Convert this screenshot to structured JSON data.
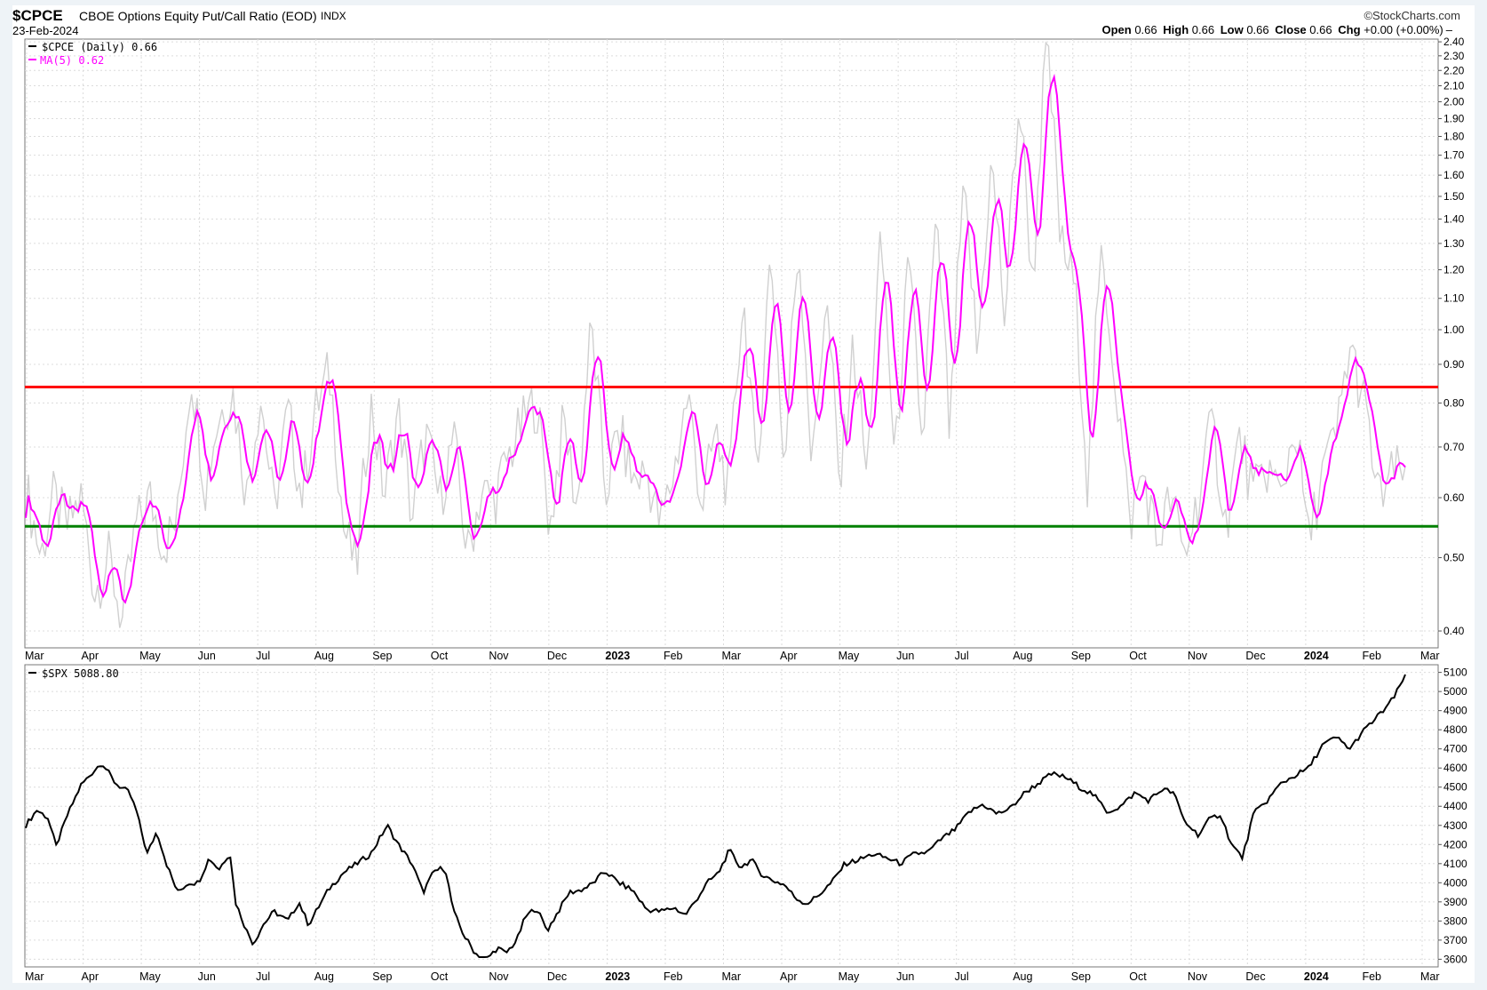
{
  "header": {
    "symbol": "$CPCE",
    "description": "CBOE Options Equity Put/Call Ratio (EOD)",
    "exchange": "INDX",
    "date": "23-Feb-2024",
    "watermark": "©StockCharts.com",
    "ohlc": {
      "open_label": "Open",
      "open": "0.66",
      "high_label": "High",
      "high": "0.66",
      "low_label": "Low",
      "low": "0.66",
      "close_label": "Close",
      "close": "0.66",
      "chg_label": "Chg",
      "chg": "+0.00 (+0.00%)"
    }
  },
  "x_axis_labels": [
    "Mar",
    "Apr",
    "May",
    "Jun",
    "Jul",
    "Aug",
    "Sep",
    "Oct",
    "Nov",
    "Dec",
    "2023",
    "Feb",
    "Mar",
    "Apr",
    "May",
    "Jun",
    "Jul",
    "Aug",
    "Sep",
    "Oct",
    "Nov",
    "Dec",
    "2024",
    "Feb",
    "Mar"
  ],
  "colors": {
    "cpce": "#d0d0d0",
    "ma": "#ff00ff",
    "resistance": "#ff0000",
    "support": "#008000",
    "spx": "#000000",
    "grid": "#dcdcdc"
  },
  "chart_data": [
    {
      "type": "line",
      "title": "$CPCE CBOE Options Equity Put/Call Ratio (EOD)",
      "scale": "log",
      "ylim": [
        0.38,
        2.42
      ],
      "y_ticks": [
        "0.40",
        "0.50",
        "0.60",
        "0.70",
        "0.80",
        "0.90",
        "1.00",
        "1.10",
        "1.20",
        "1.30",
        "1.40",
        "1.50",
        "1.60",
        "1.70",
        "1.80",
        "1.90",
        "2.00",
        "2.10",
        "2.20",
        "2.30",
        "2.40"
      ],
      "legend": [
        "$CPCE (Daily) 0.66",
        "MA(5) 0.62"
      ],
      "series": [
        {
          "name": "$CPCE (Daily)",
          "keypoints": [
            [
              0,
              0.62
            ],
            [
              0.011,
              0.5
            ],
            [
              0.02,
              0.6
            ],
            [
              0.03,
              0.55
            ],
            [
              0.04,
              0.6
            ],
            [
              0.05,
              0.45
            ],
            [
              0.06,
              0.5
            ],
            [
              0.07,
              0.41
            ],
            [
              0.08,
              0.55
            ],
            [
              0.09,
              0.6
            ],
            [
              0.1,
              0.52
            ],
            [
              0.11,
              0.56
            ],
            [
              0.12,
              0.88
            ],
            [
              0.13,
              0.62
            ],
            [
              0.14,
              0.77
            ],
            [
              0.15,
              0.83
            ],
            [
              0.16,
              0.6
            ],
            [
              0.17,
              0.82
            ],
            [
              0.18,
              0.57
            ],
            [
              0.19,
              0.78
            ],
            [
              0.2,
              0.6
            ],
            [
              0.21,
              0.78
            ],
            [
              0.22,
              0.88
            ],
            [
              0.23,
              0.55
            ],
            [
              0.24,
              0.48
            ],
            [
              0.25,
              0.8
            ],
            [
              0.26,
              0.6
            ],
            [
              0.27,
              0.78
            ],
            [
              0.28,
              0.56
            ],
            [
              0.29,
              0.73
            ],
            [
              0.3,
              0.59
            ],
            [
              0.31,
              0.72
            ],
            [
              0.32,
              0.5
            ],
            [
              0.33,
              0.61
            ],
            [
              0.34,
              0.6
            ],
            [
              0.35,
              0.68
            ],
            [
              0.36,
              0.75
            ],
            [
              0.37,
              0.81
            ],
            [
              0.38,
              0.54
            ],
            [
              0.39,
              0.76
            ],
            [
              0.4,
              0.57
            ],
            [
              0.41,
              1.01
            ],
            [
              0.42,
              0.6
            ],
            [
              0.43,
              0.74
            ],
            [
              0.44,
              0.63
            ],
            [
              0.45,
              0.65
            ],
            [
              0.46,
              0.55
            ],
            [
              0.47,
              0.65
            ],
            [
              0.48,
              0.82
            ],
            [
              0.49,
              0.58
            ],
            [
              0.5,
              0.73
            ],
            [
              0.51,
              0.6
            ],
            [
              0.52,
              1.1
            ],
            [
              0.53,
              0.6
            ],
            [
              0.54,
              1.25
            ],
            [
              0.55,
              0.62
            ],
            [
              0.56,
              1.3
            ],
            [
              0.57,
              0.63
            ],
            [
              0.58,
              1.1
            ],
            [
              0.59,
              0.6
            ],
            [
              0.6,
              0.95
            ],
            [
              0.61,
              0.62
            ],
            [
              0.62,
              1.3
            ],
            [
              0.63,
              0.64
            ],
            [
              0.64,
              1.2
            ],
            [
              0.65,
              0.68
            ],
            [
              0.66,
              1.35
            ],
            [
              0.67,
              0.7
            ],
            [
              0.68,
              1.5
            ],
            [
              0.69,
              0.9
            ],
            [
              0.7,
              1.65
            ],
            [
              0.71,
              1.0
            ],
            [
              0.72,
              2.0
            ],
            [
              0.73,
              1.1
            ],
            [
              0.74,
              2.35
            ],
            [
              0.75,
              1.3
            ],
            [
              0.76,
              1.15
            ],
            [
              0.77,
              0.6
            ],
            [
              0.78,
              1.25
            ],
            [
              0.79,
              0.85
            ],
            [
              0.8,
              0.55
            ],
            [
              0.81,
              0.65
            ],
            [
              0.82,
              0.52
            ],
            [
              0.83,
              0.6
            ],
            [
              0.84,
              0.5
            ],
            [
              0.85,
              0.6
            ],
            [
              0.86,
              0.75
            ],
            [
              0.87,
              0.55
            ],
            [
              0.88,
              0.72
            ],
            [
              0.89,
              0.6
            ],
            [
              0.9,
              0.66
            ],
            [
              0.91,
              0.6
            ],
            [
              0.92,
              0.75
            ],
            [
              0.93,
              0.52
            ],
            [
              0.94,
              0.65
            ],
            [
              0.95,
              0.72
            ],
            [
              0.96,
              0.95
            ],
            [
              0.97,
              0.8
            ],
            [
              0.98,
              0.6
            ],
            [
              0.99,
              0.64
            ],
            [
              1.0,
              0.66
            ]
          ]
        },
        {
          "name": "MA(5)",
          "description": "5-period moving average of $CPCE"
        },
        {
          "name": "Resistance",
          "value": 0.84
        },
        {
          "name": "Support",
          "value": 0.55
        }
      ]
    },
    {
      "type": "line",
      "title": "$SPX",
      "ylim": [
        3560,
        5140
      ],
      "y_ticks": [
        "3600",
        "3700",
        "3800",
        "3900",
        "4000",
        "4100",
        "4200",
        "4300",
        "4400",
        "4500",
        "4600",
        "4700",
        "4800",
        "4900",
        "5000",
        "5100"
      ],
      "legend": [
        "$SPX 5088.80"
      ],
      "series": [
        {
          "name": "$SPX",
          "keypoints": [
            [
              0,
              4300
            ],
            [
              0.008,
              4380
            ],
            [
              0.016,
              4340
            ],
            [
              0.022,
              4190
            ],
            [
              0.03,
              4350
            ],
            [
              0.04,
              4510
            ],
            [
              0.05,
              4590
            ],
            [
              0.055,
              4630
            ],
            [
              0.065,
              4520
            ],
            [
              0.075,
              4470
            ],
            [
              0.08,
              4380
            ],
            [
              0.088,
              4150
            ],
            [
              0.095,
              4270
            ],
            [
              0.102,
              4100
            ],
            [
              0.11,
              3950
            ],
            [
              0.118,
              4000
            ],
            [
              0.125,
              4000
            ],
            [
              0.133,
              4130
            ],
            [
              0.14,
              4070
            ],
            [
              0.148,
              4160
            ],
            [
              0.152,
              3900
            ],
            [
              0.16,
              3750
            ],
            [
              0.165,
              3680
            ],
            [
              0.172,
              3780
            ],
            [
              0.18,
              3850
            ],
            [
              0.19,
              3800
            ],
            [
              0.198,
              3900
            ],
            [
              0.205,
              3780
            ],
            [
              0.212,
              3870
            ],
            [
              0.22,
              3970
            ],
            [
              0.23,
              4050
            ],
            [
              0.24,
              4100
            ],
            [
              0.25,
              4150
            ],
            [
              0.262,
              4300
            ],
            [
              0.27,
              4200
            ],
            [
              0.28,
              4100
            ],
            [
              0.288,
              3950
            ],
            [
              0.296,
              4060
            ],
            [
              0.304,
              4080
            ],
            [
              0.31,
              3850
            ],
            [
              0.318,
              3720
            ],
            [
              0.326,
              3630
            ],
            [
              0.334,
              3600
            ],
            [
              0.342,
              3660
            ],
            [
              0.348,
              3630
            ],
            [
              0.356,
              3700
            ],
            [
              0.362,
              3820
            ],
            [
              0.37,
              3870
            ],
            [
              0.378,
              3750
            ],
            [
              0.386,
              3850
            ],
            [
              0.394,
              3950
            ],
            [
              0.402,
              3960
            ],
            [
              0.41,
              3990
            ],
            [
              0.42,
              4060
            ],
            [
              0.43,
              4000
            ],
            [
              0.44,
              3960
            ],
            [
              0.45,
              3860
            ],
            [
              0.46,
              3850
            ],
            [
              0.47,
              3870
            ],
            [
              0.478,
              3830
            ],
            [
              0.485,
              3900
            ],
            [
              0.494,
              4000
            ],
            [
              0.502,
              4050
            ],
            [
              0.51,
              4170
            ],
            [
              0.518,
              4080
            ],
            [
              0.526,
              4120
            ],
            [
              0.534,
              4040
            ],
            [
              0.542,
              4010
            ],
            [
              0.55,
              3990
            ],
            [
              0.558,
              3920
            ],
            [
              0.566,
              3890
            ],
            [
              0.574,
              3930
            ],
            [
              0.584,
              4000
            ],
            [
              0.594,
              4100
            ],
            [
              0.604,
              4120
            ],
            [
              0.614,
              4150
            ],
            [
              0.624,
              4130
            ],
            [
              0.634,
              4100
            ],
            [
              0.644,
              4150
            ],
            [
              0.654,
              4160
            ],
            [
              0.664,
              4230
            ],
            [
              0.674,
              4280
            ],
            [
              0.684,
              4370
            ],
            [
              0.694,
              4410
            ],
            [
              0.704,
              4360
            ],
            [
              0.714,
              4390
            ],
            [
              0.724,
              4470
            ],
            [
              0.734,
              4520
            ],
            [
              0.744,
              4570
            ],
            [
              0.754,
              4550
            ],
            [
              0.764,
              4500
            ],
            [
              0.774,
              4460
            ],
            [
              0.784,
              4370
            ],
            [
              0.794,
              4400
            ],
            [
              0.804,
              4470
            ],
            [
              0.814,
              4430
            ],
            [
              0.824,
              4490
            ],
            [
              0.832,
              4470
            ],
            [
              0.84,
              4320
            ],
            [
              0.85,
              4250
            ],
            [
              0.858,
              4330
            ],
            [
              0.866,
              4360
            ],
            [
              0.874,
              4200
            ],
            [
              0.882,
              4130
            ],
            [
              0.89,
              4360
            ],
            [
              0.9,
              4430
            ],
            [
              0.91,
              4520
            ],
            [
              0.92,
              4560
            ],
            [
              0.93,
              4600
            ],
            [
              0.94,
              4720
            ],
            [
              0.95,
              4760
            ],
            [
              0.96,
              4700
            ],
            [
              0.968,
              4780
            ],
            [
              0.976,
              4840
            ],
            [
              0.984,
              4900
            ],
            [
              0.992,
              4970
            ],
            [
              1.0,
              5088.8
            ]
          ]
        }
      ]
    }
  ]
}
